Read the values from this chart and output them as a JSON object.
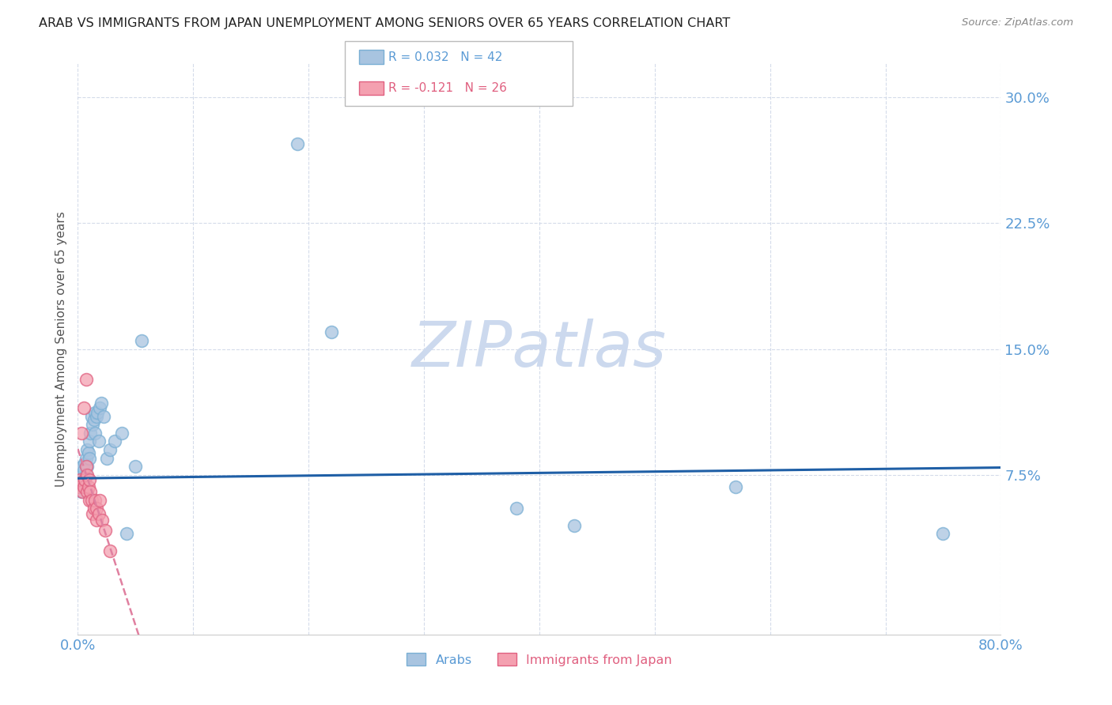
{
  "title": "ARAB VS IMMIGRANTS FROM JAPAN UNEMPLOYMENT AMONG SENIORS OVER 65 YEARS CORRELATION CHART",
  "source": "Source: ZipAtlas.com",
  "ylabel": "Unemployment Among Seniors over 65 years",
  "xlim": [
    0.0,
    0.8
  ],
  "ylim": [
    -0.02,
    0.32
  ],
  "yticks": [
    0.075,
    0.15,
    0.225,
    0.3
  ],
  "ytick_labels": [
    "7.5%",
    "15.0%",
    "22.5%",
    "30.0%"
  ],
  "xticks": [
    0.0,
    0.1,
    0.2,
    0.3,
    0.4,
    0.5,
    0.6,
    0.7,
    0.8
  ],
  "xtick_labels": [
    "0.0%",
    "",
    "",
    "",
    "",
    "",
    "",
    "",
    "80.0%"
  ],
  "legend_entries": [
    {
      "label": "Arabs",
      "R": "0.032",
      "N": "42",
      "color": "#a8c4e0"
    },
    {
      "label": "Immigrants from Japan",
      "R": "-0.121",
      "N": "26",
      "color": "#f4a0b0"
    }
  ],
  "watermark": "ZIPatlas",
  "watermark_color": "#ccd9ee",
  "tick_label_color": "#5b9bd5",
  "background_color": "#ffffff",
  "grid_color": "#d0d8e8",
  "arab_color": "#a8c4e0",
  "arab_edge_color": "#7aafd4",
  "japan_color": "#f4a0b0",
  "japan_edge_color": "#e06080",
  "trend_arab_color": "#1f5fa6",
  "trend_japan_color": "#e080a0",
  "arab_x": [
    0.001,
    0.002,
    0.003,
    0.003,
    0.004,
    0.004,
    0.005,
    0.005,
    0.006,
    0.006,
    0.007,
    0.007,
    0.008,
    0.008,
    0.009,
    0.01,
    0.01,
    0.011,
    0.012,
    0.013,
    0.014,
    0.015,
    0.015,
    0.016,
    0.017,
    0.018,
    0.019,
    0.02,
    0.022,
    0.025,
    0.028,
    0.032,
    0.038,
    0.042,
    0.05,
    0.055,
    0.19,
    0.22,
    0.38,
    0.43,
    0.57,
    0.75
  ],
  "arab_y": [
    0.068,
    0.072,
    0.075,
    0.065,
    0.08,
    0.068,
    0.078,
    0.072,
    0.082,
    0.07,
    0.085,
    0.075,
    0.09,
    0.08,
    0.088,
    0.095,
    0.085,
    0.1,
    0.11,
    0.105,
    0.108,
    0.112,
    0.1,
    0.11,
    0.112,
    0.095,
    0.115,
    0.118,
    0.11,
    0.085,
    0.09,
    0.095,
    0.1,
    0.04,
    0.08,
    0.155,
    0.272,
    0.16,
    0.055,
    0.045,
    0.068,
    0.04
  ],
  "japan_x": [
    0.001,
    0.002,
    0.003,
    0.004,
    0.005,
    0.005,
    0.006,
    0.007,
    0.007,
    0.008,
    0.008,
    0.009,
    0.01,
    0.01,
    0.011,
    0.012,
    0.013,
    0.014,
    0.015,
    0.016,
    0.016,
    0.018,
    0.019,
    0.021,
    0.024,
    0.028
  ],
  "japan_y": [
    0.068,
    0.072,
    0.1,
    0.065,
    0.068,
    0.115,
    0.072,
    0.08,
    0.132,
    0.065,
    0.075,
    0.068,
    0.06,
    0.072,
    0.065,
    0.06,
    0.052,
    0.055,
    0.06,
    0.048,
    0.055,
    0.052,
    0.06,
    0.048,
    0.042,
    0.03
  ]
}
